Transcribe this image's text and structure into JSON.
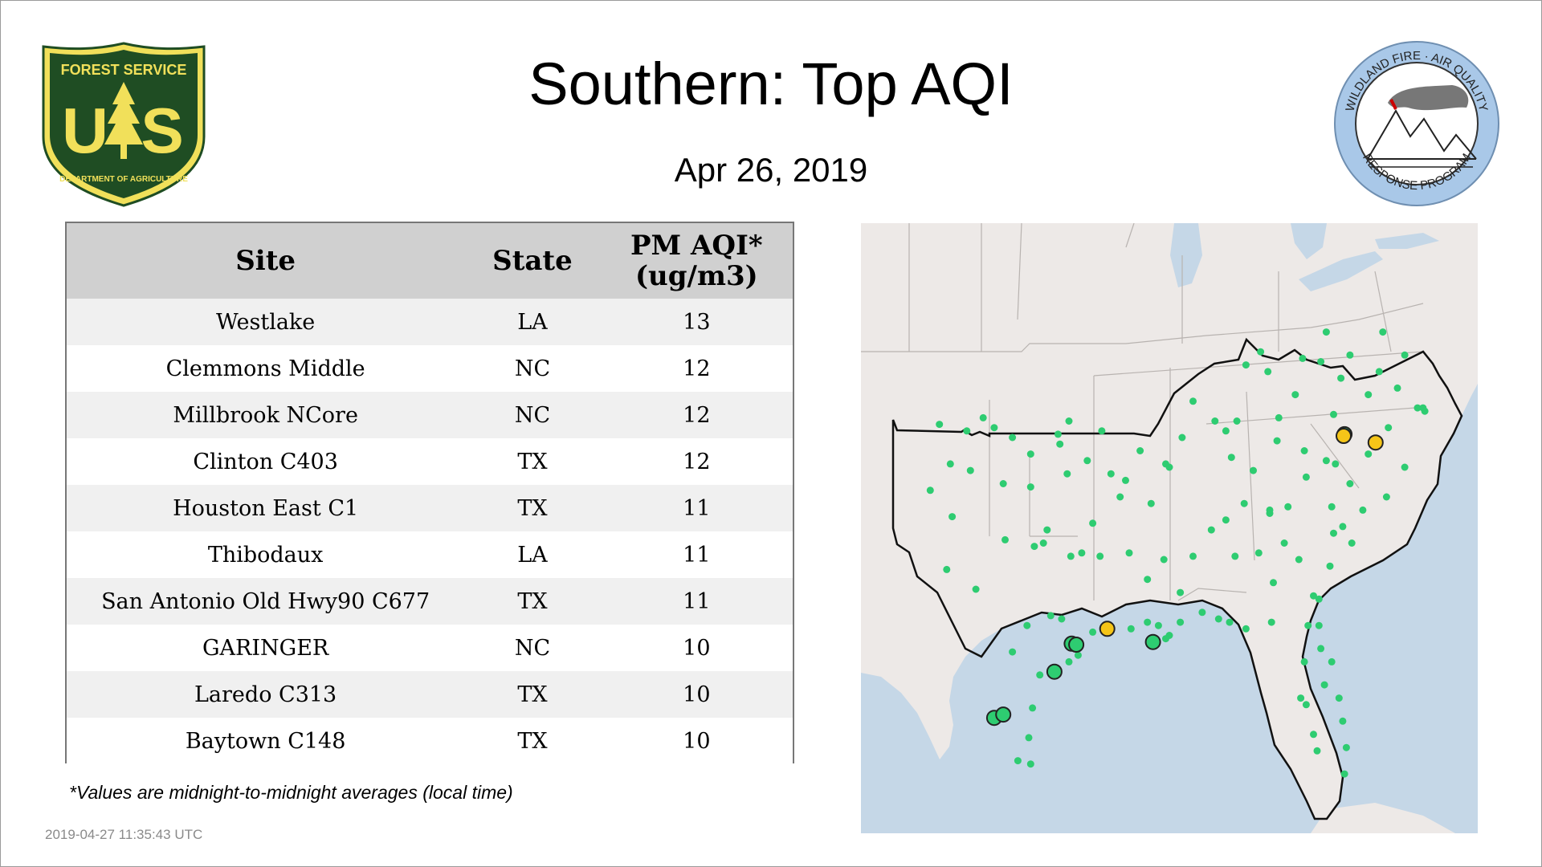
{
  "title": "Southern: Top AQI",
  "date": "Apr 26, 2019",
  "logos": {
    "left": {
      "name": "forest-service-shield",
      "top_text": "FOREST SERVICE",
      "letters": "U S",
      "bottom_text": "DEPARTMENT OF AGRICULTURE",
      "green": "#1f4d23",
      "gold": "#f1e05a"
    },
    "right": {
      "name": "wildland-fire-seal",
      "top_text": "WILDLAND FIRE · AIR QUALITY",
      "bottom_text": "RESPONSE PROGRAM",
      "ring": "#a9c8e8"
    }
  },
  "table": {
    "headers": {
      "site": "Site",
      "state": "State",
      "aqi_line1": "PM AQI*",
      "aqi_line2": "(ug/m3)"
    },
    "rows": [
      {
        "site": "Westlake",
        "state": "LA",
        "aqi": "13"
      },
      {
        "site": "Clemmons Middle",
        "state": "NC",
        "aqi": "12"
      },
      {
        "site": "Millbrook NCore",
        "state": "NC",
        "aqi": "12"
      },
      {
        "site": "Clinton C403",
        "state": "TX",
        "aqi": "12"
      },
      {
        "site": "Houston East C1",
        "state": "TX",
        "aqi": "11"
      },
      {
        "site": "Thibodaux",
        "state": "LA",
        "aqi": "11"
      },
      {
        "site": "San Antonio Old Hwy90 C677",
        "state": "TX",
        "aqi": "11"
      },
      {
        "site": "GARINGER",
        "state": "NC",
        "aqi": "10"
      },
      {
        "site": "Laredo C313",
        "state": "TX",
        "aqi": "10"
      },
      {
        "site": "Baytown C148",
        "state": "TX",
        "aqi": "10"
      }
    ]
  },
  "footnote": "*Values are midnight-to-midnight averages (local time)",
  "timestamp": "2019-04-27 11:35:43 UTC",
  "map": {
    "colors": {
      "land": "#ede9e7",
      "water": "#c5d7e7",
      "good": "#2ecc71",
      "moderate": "#f5c518",
      "top_good": "#2ecc71"
    },
    "markers": {
      "top_green": [
        [
          -96.2,
          28.9
        ],
        [
          -99.5,
          27.5
        ],
        [
          -95.25,
          29.75
        ],
        [
          -95.0,
          29.72
        ],
        [
          -90.8,
          29.8
        ],
        [
          -80.3,
          36.1
        ],
        [
          -99.0,
          27.6
        ]
      ],
      "top_yellow": [
        [
          -93.3,
          30.2
        ],
        [
          -80.35,
          36.05
        ],
        [
          -78.6,
          35.85
        ]
      ],
      "regular": [
        [
          -102.5,
          36.4
        ],
        [
          -101.0,
          36.2
        ],
        [
          -100.1,
          36.6
        ],
        [
          -99.5,
          36.3
        ],
        [
          -98.5,
          36.0
        ],
        [
          -97.5,
          35.5
        ],
        [
          -96.0,
          36.1
        ],
        [
          -95.4,
          36.5
        ],
        [
          -95.9,
          35.8
        ],
        [
          -101.9,
          35.2
        ],
        [
          -100.8,
          35.0
        ],
        [
          -99.0,
          34.6
        ],
        [
          -97.5,
          34.5
        ],
        [
          -95.5,
          34.9
        ],
        [
          -94.4,
          35.3
        ],
        [
          -93.1,
          34.9
        ],
        [
          -92.3,
          34.7
        ],
        [
          -91.5,
          35.6
        ],
        [
          -90.1,
          35.2
        ],
        [
          -89.9,
          35.1
        ],
        [
          -86.8,
          36.2
        ],
        [
          -85.3,
          35.0
        ],
        [
          -84.0,
          35.9
        ],
        [
          -83.9,
          36.6
        ],
        [
          -86.2,
          36.5
        ],
        [
          -87.4,
          36.5
        ],
        [
          -88.6,
          37.1
        ],
        [
          -85.7,
          38.2
        ],
        [
          -84.5,
          38.0
        ],
        [
          -82.6,
          38.4
        ],
        [
          -81.6,
          38.3
        ],
        [
          -80.0,
          38.5
        ],
        [
          -79.0,
          37.3
        ],
        [
          -78.4,
          38.0
        ],
        [
          -77.4,
          37.5
        ],
        [
          -76.3,
          36.9
        ],
        [
          -77.0,
          38.5
        ],
        [
          -78.2,
          39.2
        ],
        [
          -81.3,
          39.2
        ],
        [
          -80.5,
          37.8
        ],
        [
          -82.5,
          35.6
        ],
        [
          -81.3,
          35.3
        ],
        [
          -80.8,
          35.2
        ],
        [
          -80.0,
          34.6
        ],
        [
          -79.0,
          35.5
        ],
        [
          -77.9,
          36.3
        ],
        [
          -77.0,
          35.1
        ],
        [
          -78.0,
          34.2
        ],
        [
          -79.9,
          32.8
        ],
        [
          -81.0,
          33.9
        ],
        [
          -80.4,
          33.3
        ],
        [
          -82.4,
          34.8
        ],
        [
          -83.4,
          33.9
        ],
        [
          -84.4,
          33.7
        ],
        [
          -84.4,
          33.8
        ],
        [
          -85.0,
          32.5
        ],
        [
          -83.6,
          32.8
        ],
        [
          -81.1,
          32.1
        ],
        [
          -82.0,
          31.2
        ],
        [
          -84.2,
          31.6
        ],
        [
          -86.3,
          32.4
        ],
        [
          -86.8,
          33.5
        ],
        [
          -87.6,
          33.2
        ],
        [
          -85.8,
          34.0
        ],
        [
          -88.1,
          30.7
        ],
        [
          -87.2,
          30.5
        ],
        [
          -86.6,
          30.4
        ],
        [
          -85.7,
          30.2
        ],
        [
          -84.3,
          30.4
        ],
        [
          -82.3,
          30.3
        ],
        [
          -81.7,
          30.3
        ],
        [
          -81.6,
          29.6
        ],
        [
          -82.5,
          29.2
        ],
        [
          -82.7,
          28.1
        ],
        [
          -82.4,
          27.9
        ],
        [
          -81.4,
          28.5
        ],
        [
          -80.6,
          28.1
        ],
        [
          -80.4,
          27.4
        ],
        [
          -80.2,
          26.6
        ],
        [
          -80.3,
          25.8
        ],
        [
          -81.8,
          26.5
        ],
        [
          -82.0,
          27.0
        ],
        [
          -81.0,
          29.2
        ],
        [
          -89.3,
          30.4
        ],
        [
          -89.9,
          30.0
        ],
        [
          -90.1,
          29.9
        ],
        [
          -91.1,
          30.4
        ],
        [
          -90.5,
          30.3
        ],
        [
          -92.0,
          30.2
        ],
        [
          -93.7,
          32.4
        ],
        [
          -92.1,
          32.5
        ],
        [
          -91.1,
          31.7
        ],
        [
          -90.2,
          32.3
        ],
        [
          -89.3,
          31.3
        ],
        [
          -88.6,
          32.4
        ],
        [
          -90.9,
          34.0
        ],
        [
          -94.1,
          33.4
        ],
        [
          -94.7,
          32.5
        ],
        [
          -96.8,
          32.8
        ],
        [
          -97.3,
          32.7
        ],
        [
          -96.6,
          33.2
        ],
        [
          -98.5,
          29.5
        ],
        [
          -97.7,
          30.3
        ],
        [
          -97.4,
          27.8
        ],
        [
          -97.5,
          26.1
        ],
        [
          -97.6,
          26.9
        ],
        [
          -98.2,
          26.2
        ],
        [
          -99.5,
          27.5
        ],
        [
          -101.8,
          33.6
        ],
        [
          -102.1,
          32.0
        ],
        [
          -103.0,
          34.4
        ],
        [
          -100.5,
          31.4
        ],
        [
          -98.9,
          32.9
        ],
        [
          -95.3,
          32.4
        ],
        [
          -94.1,
          30.1
        ],
        [
          -95.8,
          30.5
        ],
        [
          -96.4,
          30.6
        ],
        [
          -97.0,
          28.8
        ],
        [
          -95.4,
          29.2
        ],
        [
          -94.9,
          29.4
        ],
        [
          -92.6,
          34.2
        ],
        [
          -93.6,
          36.2
        ],
        [
          -84.9,
          38.6
        ],
        [
          -83.0,
          37.3
        ],
        [
          -86.5,
          35.4
        ],
        [
          -89.2,
          36.0
        ],
        [
          -80.9,
          36.7
        ],
        [
          -75.9,
          36.8
        ],
        [
          -76.0,
          36.9
        ],
        [
          -82.8,
          32.3
        ],
        [
          -81.7,
          31.1
        ],
        [
          -80.9,
          33.1
        ],
        [
          -79.3,
          33.8
        ]
      ]
    }
  }
}
